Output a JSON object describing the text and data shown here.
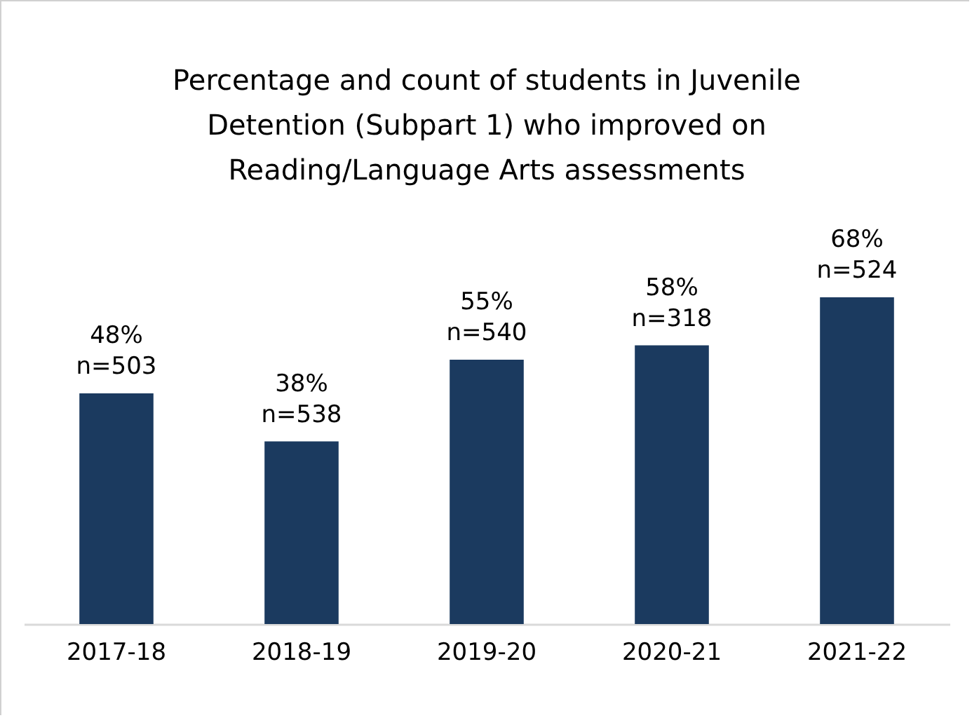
{
  "chart_data": {
    "type": "bar",
    "title": "Percentage and count of students in Juvenile Detention (Subpart 1) who improved on Reading/Language Arts assessments",
    "categories": [
      "2017-18",
      "2018-19",
      "2019-20",
      "2020-21",
      "2021-22"
    ],
    "values": [
      48,
      38,
      55,
      58,
      68
    ],
    "value_labels": [
      "48%\nn=503",
      "38%\nn=538",
      "55%\nn=540",
      "58%\nn=318",
      "68%\nn=524"
    ],
    "color": "#1b3a5f"
  }
}
